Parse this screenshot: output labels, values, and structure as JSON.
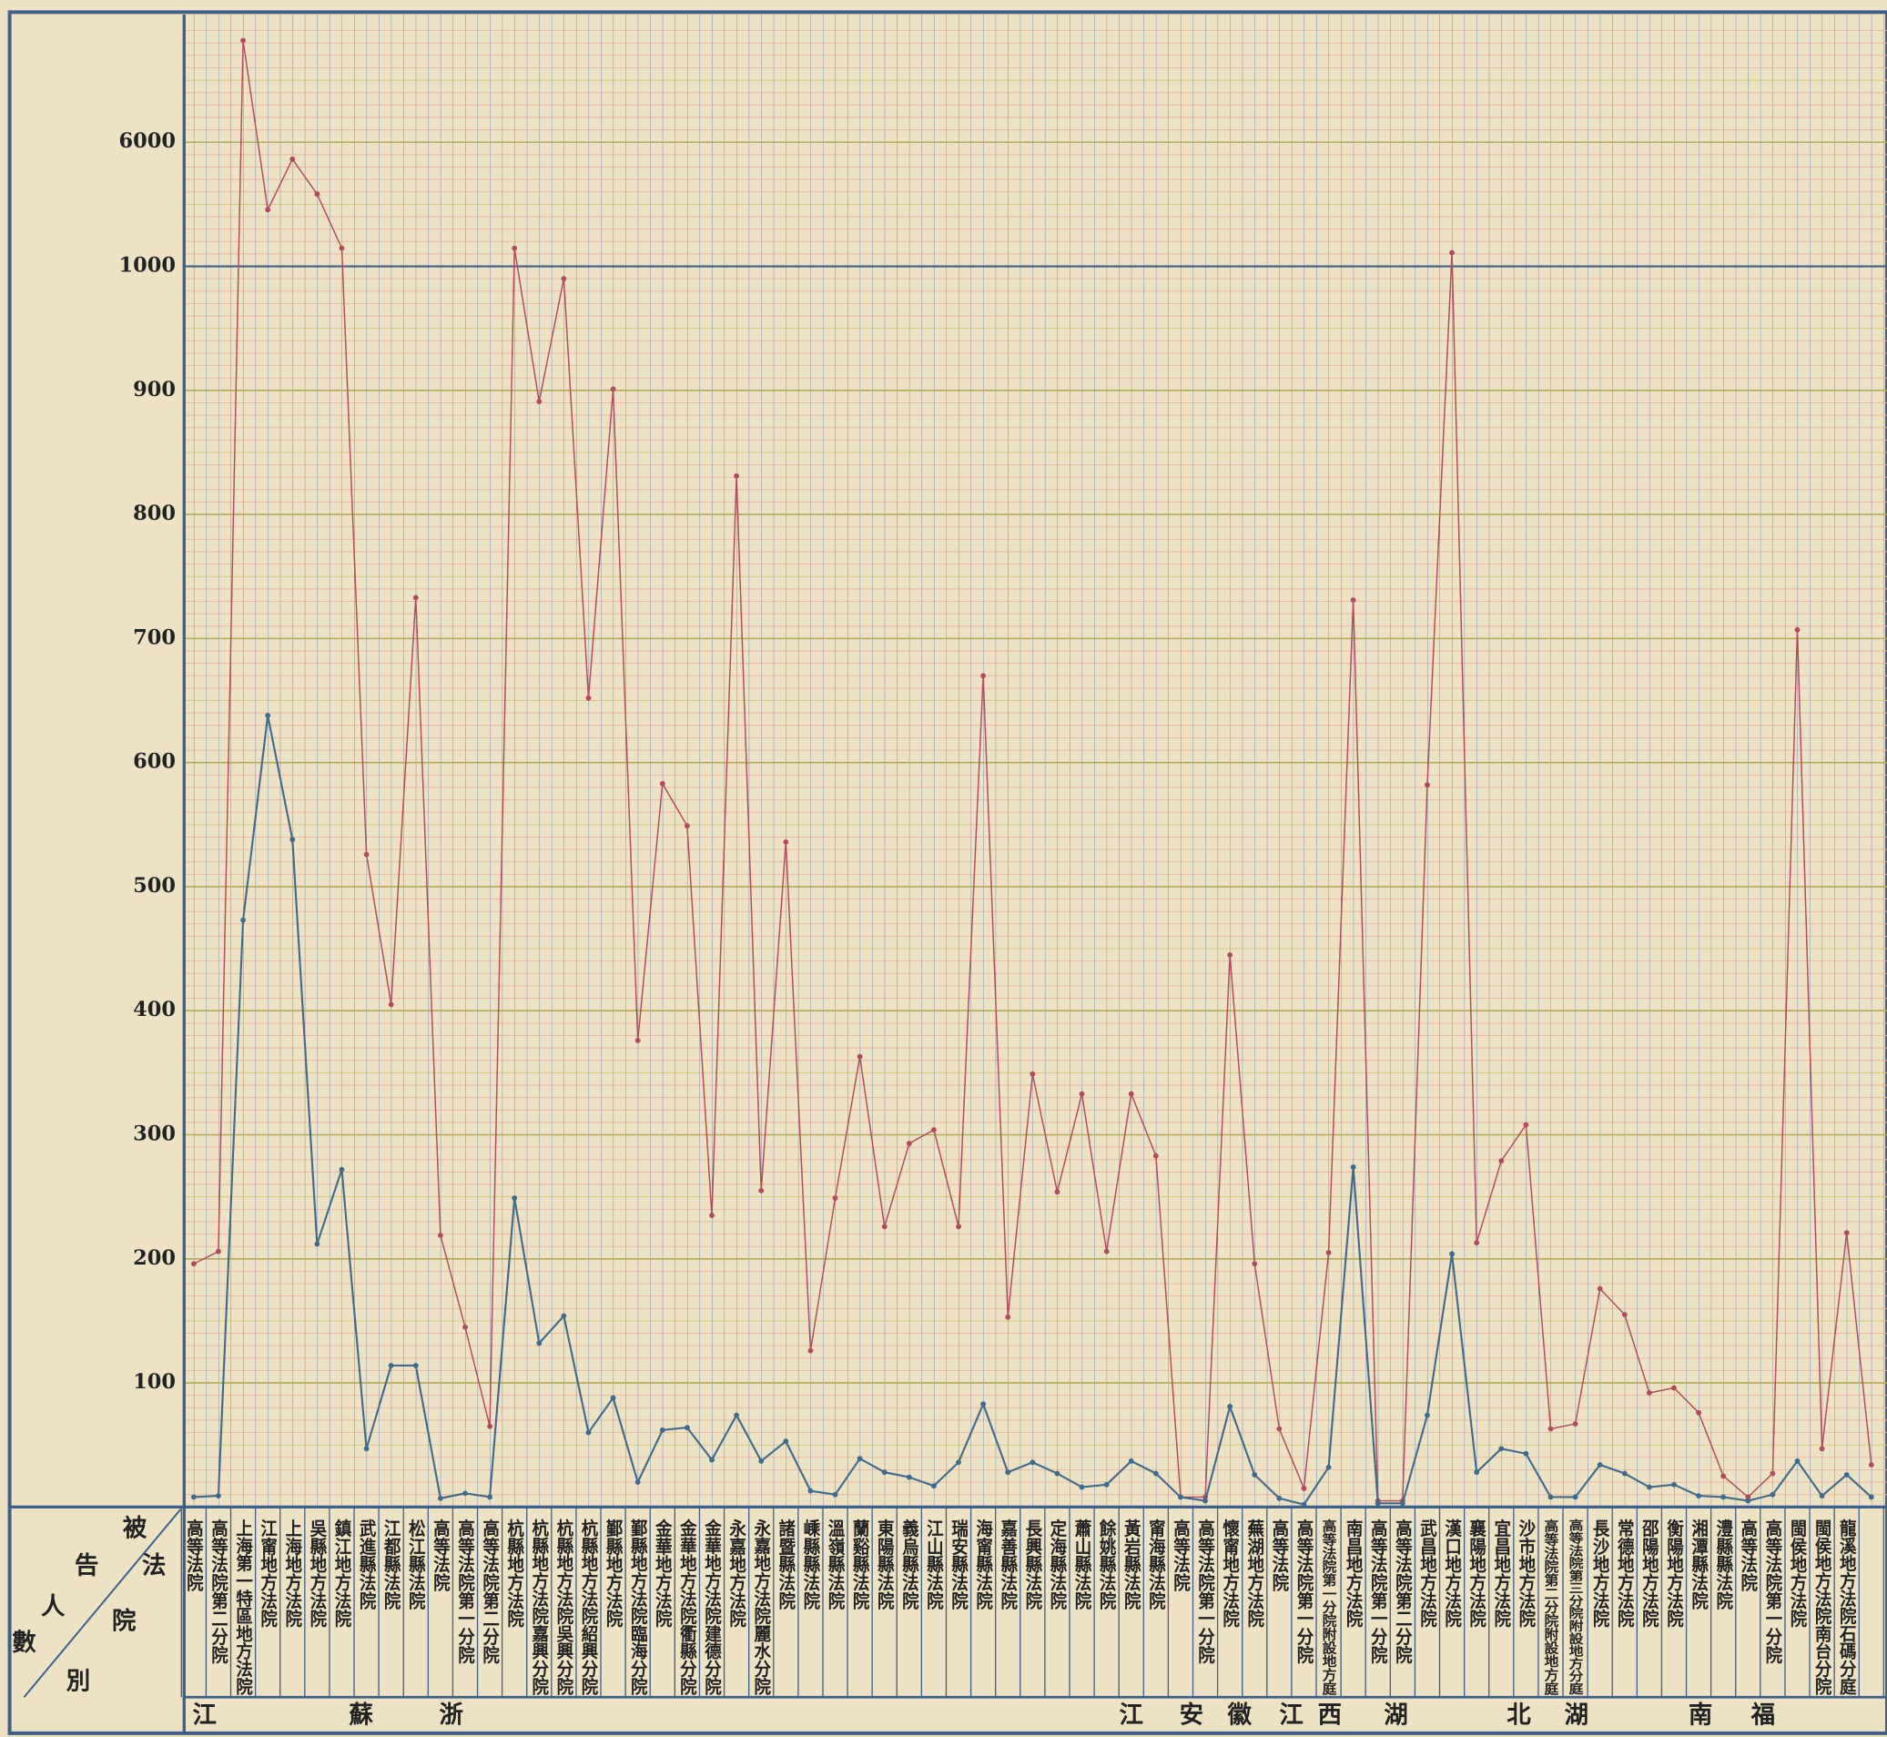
{
  "chart_data": {
    "type": "line",
    "categories": [
      "高等法院",
      "高等法院第二分院",
      "上海第一特區地方法院",
      "江甯地方法院",
      "上海地方法院",
      "吳縣地方法院",
      "鎮江地方法院",
      "武進縣法院",
      "江都縣法院",
      "松江縣法院",
      "高等法院",
      "高等法院第一分院",
      "高等法院第二分院",
      "杭縣地方法院",
      "杭縣地方法院嘉興分院",
      "杭縣地方法院吳興分院",
      "杭縣地方法院紹興分院",
      "鄞縣地方法院",
      "鄞縣地方法院臨海分院",
      "金華地方法院",
      "金華地方法院衢縣分院",
      "金華地方法院建德分院",
      "永嘉地方法院",
      "永嘉地方法院麗水分院",
      "諸暨縣法院",
      "嵊縣縣法院",
      "溫嶺縣法院",
      "蘭谿縣法院",
      "東陽縣法院",
      "義烏縣法院",
      "江山縣法院",
      "瑞安縣法院",
      "海甯縣法院",
      "嘉善縣法院",
      "長興縣法院",
      "定海縣法院",
      "蕭山縣法院",
      "餘姚縣法院",
      "黃岩縣法院",
      "甯海縣法院",
      "高等法院",
      "高等法院第一分院",
      "懷甯地方法院",
      "蕪湖地方法院",
      "高等法院",
      "高等法院第一分院",
      "高等法院第一分院附設地方庭",
      "南昌地方法院",
      "高等法院第一分院",
      "高等法院第二分院",
      "武昌地方法院",
      "漢口地方法院",
      "襄陽地方法院",
      "宜昌地方法院",
      "沙市地方法院",
      "高等法院第二分院附設地方庭",
      "高等法院第三分院附設地方分庭",
      "長沙地方法院",
      "常德地方法院",
      "邵陽地方法院",
      "衡陽地方法院",
      "湘潭縣法院",
      "澧縣縣法院",
      "高等法院",
      "高等法院第一分院",
      "閩侯地方法院",
      "閩侯地方法院南台分院",
      "龍溪地方法院石碼分庭",
      null
    ],
    "series": [
      {
        "color": "#b04a5c",
        "values": [
          196,
          206,
          10100,
          3280,
          5320,
          3910,
          1730,
          526,
          405,
          733,
          219,
          145,
          65,
          1730,
          891,
          990,
          652,
          901,
          376,
          583,
          549,
          235,
          831,
          255,
          536,
          126,
          249,
          363,
          226,
          293,
          304,
          226,
          670,
          153,
          349,
          254,
          333,
          206,
          333,
          283,
          8,
          8,
          445,
          196,
          63,
          15,
          205,
          731,
          5,
          5,
          582,
          1550,
          213,
          279,
          308,
          63,
          67,
          176,
          155,
          92,
          96,
          76,
          25,
          8,
          27,
          707,
          47,
          221,
          34
        ]
      },
      {
        "color": "#3f6a8c",
        "values": [
          8,
          9,
          473,
          638,
          538,
          212,
          272,
          47,
          114,
          114,
          7,
          11,
          8,
          249,
          132,
          154,
          60,
          88,
          20,
          62,
          64,
          38,
          74,
          37,
          53,
          13,
          10,
          39,
          28,
          24,
          17,
          36,
          83,
          28,
          36,
          27,
          16,
          18,
          37,
          27,
          8,
          5,
          81,
          26,
          7,
          2,
          32,
          274,
          3,
          3,
          74,
          204,
          28,
          47,
          43,
          8,
          8,
          34,
          27,
          16,
          18,
          9,
          8,
          5,
          10,
          37,
          9,
          26,
          8
        ]
      }
    ],
    "ylim": [
      0,
      11000
    ],
    "yticks": [
      100,
      200,
      300,
      400,
      500,
      600,
      700,
      800,
      900,
      1000,
      6000
    ],
    "grid": true
  },
  "province_labels": [
    "江",
    "蘇",
    "浙",
    "江",
    "安",
    "徽",
    "江",
    "西",
    "湖",
    "北",
    "湖",
    "南",
    "福"
  ],
  "corner_labels": {
    "row_header": [
      "被",
      "告",
      "人",
      "數",
      "別"
    ],
    "column_header": [
      "法",
      "院"
    ]
  }
}
